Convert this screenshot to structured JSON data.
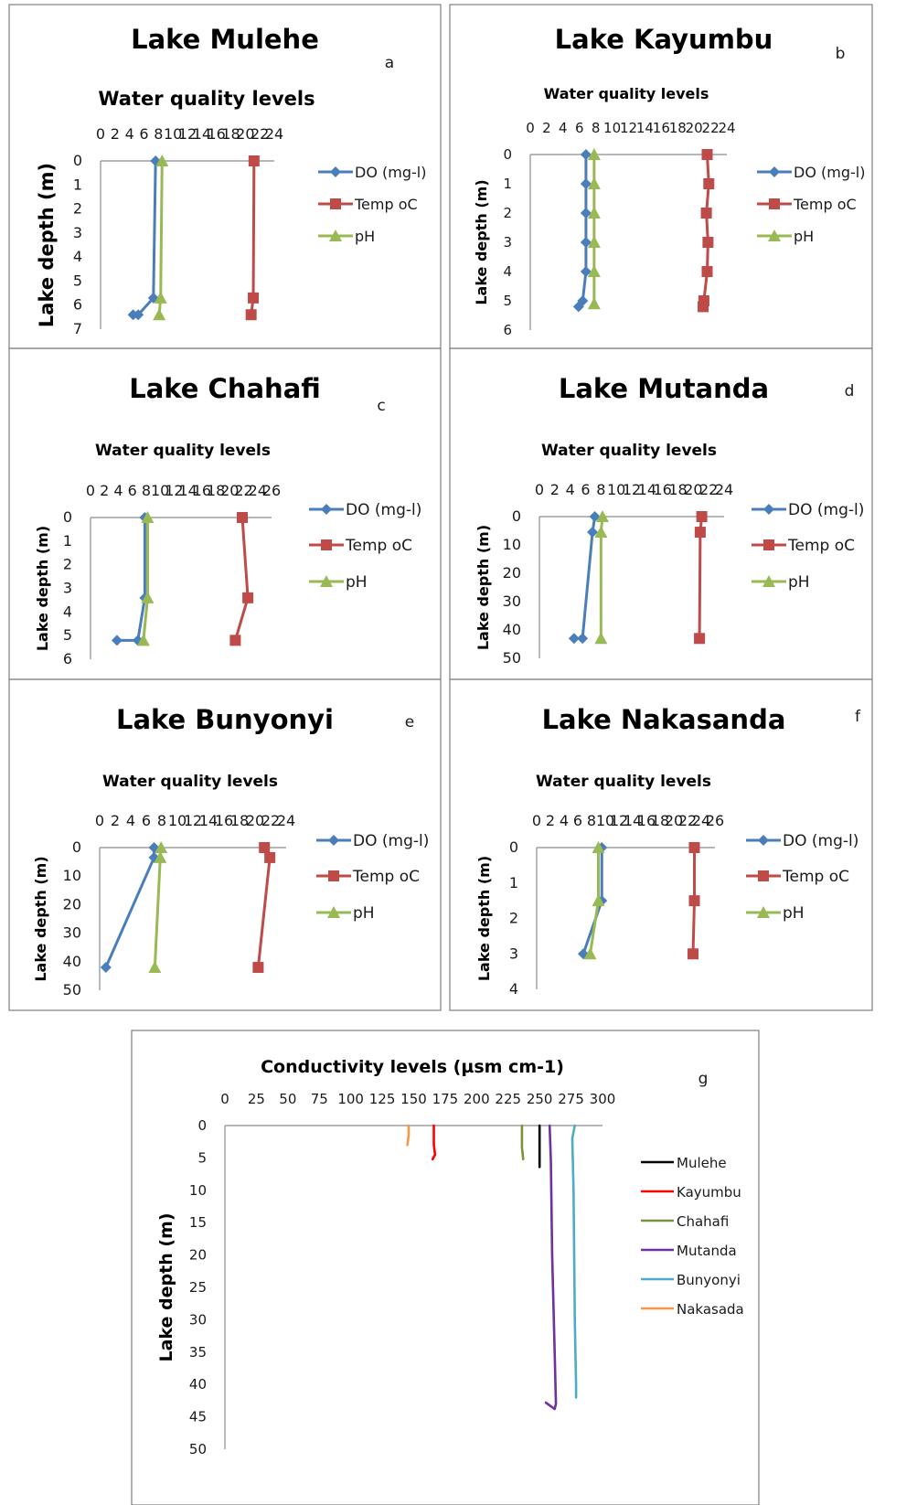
{
  "chart_data": [
    {
      "panel": "a",
      "type": "line",
      "title": "Lake Mulehe",
      "subtitle": "Water quality levels",
      "ylabel": "Lake depth (m)",
      "xlim": [
        0,
        24
      ],
      "xticks": [
        "0",
        "2",
        "4",
        "6",
        "8",
        "10",
        "12",
        "14",
        "16",
        "18",
        "20",
        "22",
        "24"
      ],
      "ylim": [
        0,
        7
      ],
      "yticks": [
        "0",
        "1",
        "2",
        "3",
        "4",
        "5",
        "6",
        "7"
      ],
      "y_inverted": true,
      "legend_position": "right",
      "series": [
        {
          "name": "DO (mg-l)",
          "color": "#4a7ebb",
          "marker": "diamond",
          "x": [
            7.6,
            7.3,
            5.2,
            4.5
          ],
          "y": [
            0,
            5.7,
            6.4,
            6.4
          ]
        },
        {
          "name": "Temp oC",
          "color": "#be4b48",
          "marker": "square",
          "x": [
            21.2,
            21.1,
            20.8
          ],
          "y": [
            0,
            5.7,
            6.4
          ]
        },
        {
          "name": "pH",
          "color": "#98b954",
          "marker": "triangle",
          "x": [
            8.5,
            8.3,
            8.1
          ],
          "y": [
            0,
            5.7,
            6.4
          ]
        }
      ]
    },
    {
      "panel": "b",
      "type": "line",
      "title": "Lake Kayumbu",
      "subtitle": "Water quality levels",
      "ylabel": "Lake depth (m)",
      "xlim": [
        0,
        24
      ],
      "xticks": [
        "0",
        "2",
        "4",
        "6",
        "8",
        "10",
        "12",
        "14",
        "16",
        "18",
        "20",
        "22",
        "24"
      ],
      "ylim": [
        0,
        6
      ],
      "yticks": [
        "0",
        "1",
        "2",
        "3",
        "4",
        "5",
        "6"
      ],
      "y_inverted": true,
      "legend_position": "right",
      "series": [
        {
          "name": "DO (mg-l)",
          "color": "#4a7ebb",
          "marker": "diamond",
          "x": [
            6.8,
            6.8,
            6.8,
            6.8,
            6.8,
            6.4,
            5.9
          ],
          "y": [
            0,
            1,
            2,
            3,
            4,
            5,
            5.2
          ]
        },
        {
          "name": "Temp oC",
          "color": "#be4b48",
          "marker": "square",
          "x": [
            21.6,
            21.8,
            21.5,
            21.7,
            21.6,
            21.2,
            21.1
          ],
          "y": [
            0,
            1,
            2,
            3,
            4,
            5,
            5.2
          ]
        },
        {
          "name": "pH",
          "color": "#98b954",
          "marker": "triangle",
          "x": [
            7.8,
            7.8,
            7.8,
            7.8,
            7.8,
            7.8
          ],
          "y": [
            0,
            1,
            2,
            3,
            4,
            5.1
          ]
        }
      ]
    },
    {
      "panel": "c",
      "type": "line",
      "title": "Lake Chahafi",
      "subtitle": "Water quality levels",
      "ylabel": "Lake depth (m)",
      "xlim": [
        0,
        26
      ],
      "xticks": [
        "0",
        "2",
        "4",
        "6",
        "8",
        "10",
        "12",
        "14",
        "16",
        "18",
        "20",
        "22",
        "24",
        "26"
      ],
      "ylim": [
        0,
        6
      ],
      "yticks": [
        "0",
        "1",
        "2",
        "3",
        "4",
        "5",
        "6"
      ],
      "y_inverted": true,
      "legend_position": "right",
      "series": [
        {
          "name": "DO (mg-l)",
          "color": "#4a7ebb",
          "marker": "diamond",
          "x": [
            7.8,
            7.8,
            6.8,
            3.8
          ],
          "y": [
            0,
            3.4,
            5.2,
            5.2
          ]
        },
        {
          "name": "Temp oC",
          "color": "#be4b48",
          "marker": "square",
          "x": [
            21.8,
            22.6,
            20.8
          ],
          "y": [
            0,
            3.4,
            5.2
          ]
        },
        {
          "name": "pH",
          "color": "#98b954",
          "marker": "triangle",
          "x": [
            8.2,
            8.2,
            7.6
          ],
          "y": [
            0,
            3.4,
            5.2
          ]
        }
      ]
    },
    {
      "panel": "d",
      "type": "line",
      "title": "Lake Mutanda",
      "subtitle": "Water quality levels",
      "ylabel": "Lake depth (m)",
      "xlim": [
        0,
        24
      ],
      "xticks": [
        "0",
        "2",
        "4",
        "6",
        "8",
        "10",
        "12",
        "14",
        "16",
        "18",
        "20",
        "22",
        "24"
      ],
      "ylim": [
        0,
        50
      ],
      "yticks": [
        "0",
        "10",
        "20",
        "30",
        "40",
        "50"
      ],
      "y_inverted": true,
      "legend_position": "right",
      "series": [
        {
          "name": "DO (mg-l)",
          "color": "#4a7ebb",
          "marker": "diamond",
          "x": [
            7.2,
            6.9,
            5.6,
            4.5
          ],
          "y": [
            0,
            5.5,
            43,
            43
          ]
        },
        {
          "name": "Temp oC",
          "color": "#be4b48",
          "marker": "square",
          "x": [
            21.1,
            20.9,
            20.8
          ],
          "y": [
            0,
            5.5,
            43
          ]
        },
        {
          "name": "pH",
          "color": "#98b954",
          "marker": "triangle",
          "x": [
            8.2,
            8.0,
            8.0
          ],
          "y": [
            0,
            5.5,
            43
          ]
        }
      ]
    },
    {
      "panel": "e",
      "type": "line",
      "title": "Lake Bunyonyi",
      "subtitle": "Water quality levels",
      "ylabel": "Lake depth (m)",
      "xlim": [
        0,
        24
      ],
      "xticks": [
        "0",
        "2",
        "4",
        "6",
        "8",
        "10",
        "12",
        "14",
        "16",
        "18",
        "20",
        "22",
        "24"
      ],
      "ylim": [
        0,
        50
      ],
      "yticks": [
        "0",
        "10",
        "20",
        "30",
        "40",
        "50"
      ],
      "y_inverted": true,
      "legend_position": "right",
      "series": [
        {
          "name": "DO (mg-l)",
          "color": "#4a7ebb",
          "marker": "diamond",
          "x": [
            7.0,
            7.0,
            0.8
          ],
          "y": [
            0,
            3.5,
            42
          ]
        },
        {
          "name": "Temp oC",
          "color": "#be4b48",
          "marker": "square",
          "x": [
            21.2,
            21.9,
            20.4
          ],
          "y": [
            0,
            3.5,
            42
          ]
        },
        {
          "name": "pH",
          "color": "#98b954",
          "marker": "triangle",
          "x": [
            7.9,
            7.8,
            7.1
          ],
          "y": [
            0,
            3.5,
            42
          ]
        }
      ]
    },
    {
      "panel": "f",
      "type": "line",
      "title": "Lake Nakasanda",
      "subtitle": "Water quality levels",
      "ylabel": "Lake depth (m)",
      "xlim": [
        0,
        26
      ],
      "xticks": [
        "0",
        "2",
        "4",
        "6",
        "8",
        "10",
        "12",
        "14",
        "16",
        "18",
        "20",
        "22",
        "24",
        "26"
      ],
      "ylim": [
        0,
        4
      ],
      "yticks": [
        "0",
        "1",
        "2",
        "3",
        "4"
      ],
      "y_inverted": true,
      "legend_position": "right",
      "series": [
        {
          "name": "DO (mg-l)",
          "color": "#4a7ebb",
          "marker": "diamond",
          "x": [
            9.5,
            9.5,
            6.8
          ],
          "y": [
            0,
            1.5,
            3
          ]
        },
        {
          "name": "Temp oC",
          "color": "#be4b48",
          "marker": "square",
          "x": [
            23.0,
            23.0,
            22.8
          ],
          "y": [
            0,
            1.5,
            3
          ]
        },
        {
          "name": "pH",
          "color": "#98b954",
          "marker": "triangle",
          "x": [
            9.0,
            9.0,
            7.8
          ],
          "y": [
            0,
            1.5,
            3
          ]
        }
      ]
    },
    {
      "panel": "g",
      "type": "line",
      "title": "Conductivity levels (µsm cm-1)",
      "ylabel": "Lake depth (m)",
      "xlim": [
        0,
        300
      ],
      "xticks": [
        "0",
        "25",
        "50",
        "75",
        "100",
        "125",
        "150",
        "175",
        "200",
        "225",
        "250",
        "275",
        "300"
      ],
      "ylim": [
        0,
        50
      ],
      "yticks": [
        "0",
        "5",
        "10",
        "15",
        "20",
        "25",
        "30",
        "35",
        "40",
        "45",
        "50"
      ],
      "y_inverted": true,
      "legend_position": "right",
      "series": [
        {
          "name": "Mulehe",
          "color": "#000000",
          "x": [
            250,
            250,
            250
          ],
          "y": [
            0,
            3,
            6.4
          ]
        },
        {
          "name": "Kayumbu",
          "color": "#ff0000",
          "x": [
            166,
            166,
            167,
            165
          ],
          "y": [
            0,
            3,
            4.5,
            5.2
          ]
        },
        {
          "name": "Chahafi",
          "color": "#77933c",
          "x": [
            236,
            236,
            237
          ],
          "y": [
            0,
            3.4,
            5.2
          ]
        },
        {
          "name": "Mutanda",
          "color": "#7030a0",
          "x": [
            258,
            259,
            260,
            262,
            263,
            262,
            255
          ],
          "y": [
            0,
            5.5,
            20,
            35,
            43,
            43.8,
            42.8
          ]
        },
        {
          "name": "Bunyonyi",
          "color": "#4bacc6",
          "x": [
            278,
            276,
            277,
            278,
            279,
            279
          ],
          "y": [
            0,
            2,
            10,
            30,
            40,
            42
          ]
        },
        {
          "name": "Nakasada",
          "color": "#f79646",
          "x": [
            146,
            146,
            145
          ],
          "y": [
            0,
            1.5,
            3
          ]
        }
      ]
    }
  ],
  "panel_letters": [
    "a",
    "b",
    "c",
    "d",
    "e",
    "f",
    "g"
  ]
}
